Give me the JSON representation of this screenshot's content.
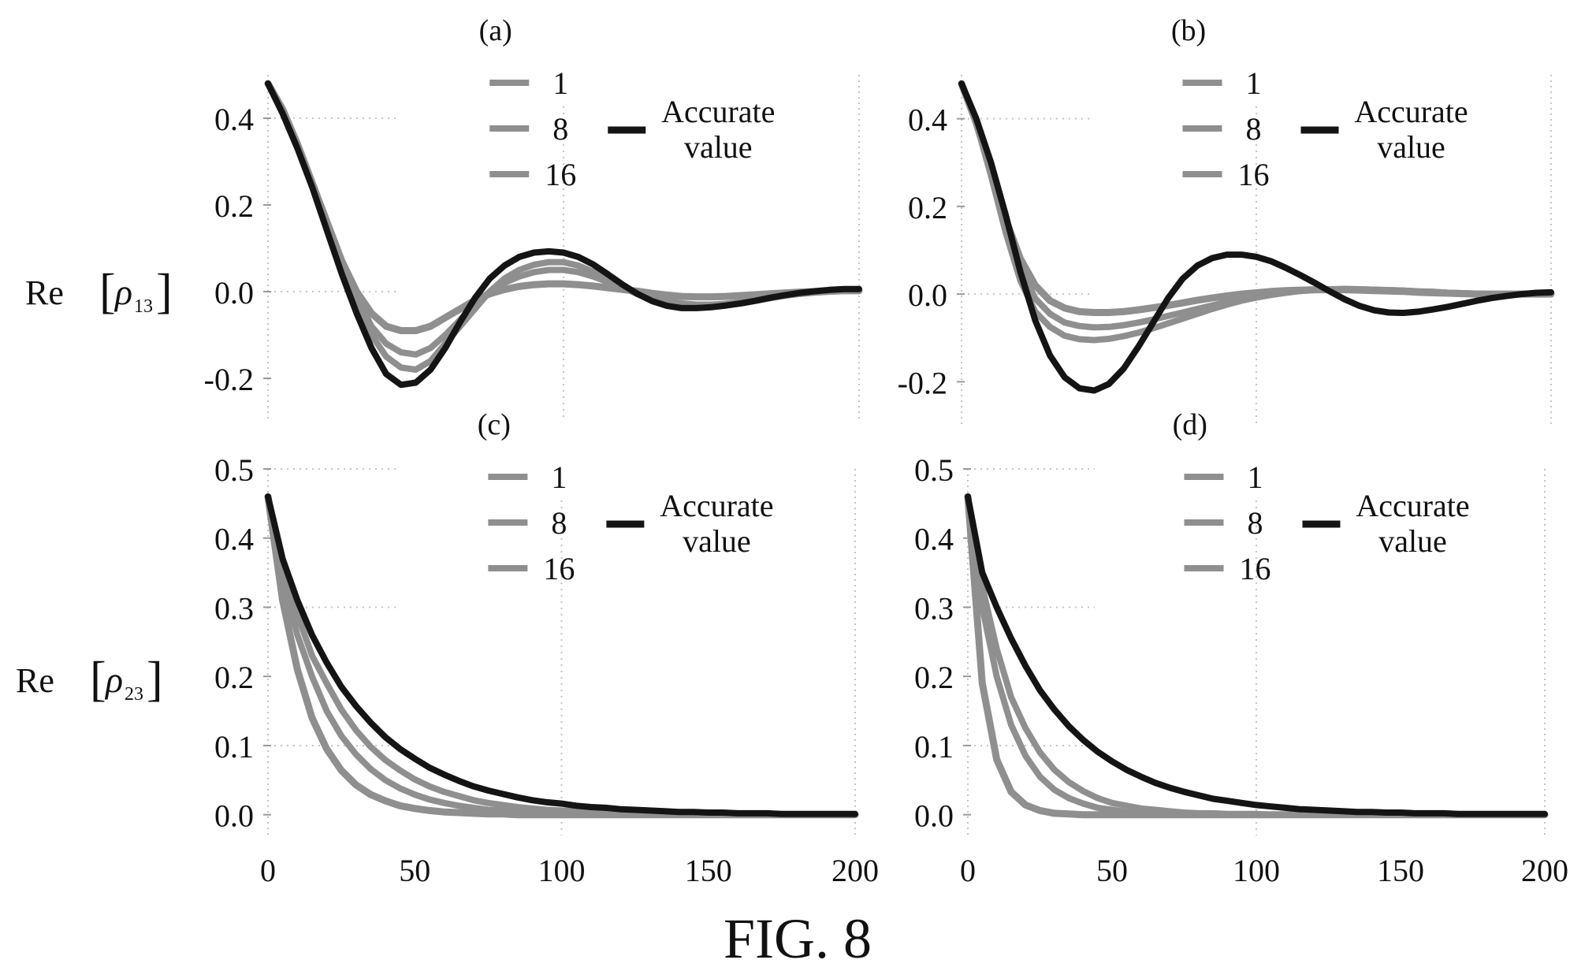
{
  "figure": {
    "caption": "FIG. 8",
    "ylabel_top_prefix": "Re",
    "ylabel_top_sub": "13",
    "ylabel_bottom_prefix": "Re",
    "ylabel_bottom_sub": "23",
    "ylabel_symbol": "ρ"
  },
  "colors": {
    "accurate": "#141414",
    "approx": "#8f8f8f",
    "grid": "#c4c4c4"
  },
  "chart_data": [
    {
      "type": "line",
      "panel_label": "(a)",
      "xlim": [
        0,
        200
      ],
      "ylim": [
        -0.3,
        0.5
      ],
      "yticks": [
        -0.2,
        0.0,
        0.2,
        0.4
      ],
      "yticklabels": [
        "-0.2",
        "0.0",
        "0.2",
        "0.4"
      ],
      "xticks": [
        0,
        50,
        100,
        150,
        200
      ],
      "xticklabels": [],
      "grid": "sparse-dotted",
      "legend_position": "top-right",
      "legend_accurate": [
        "Accurate",
        "value"
      ],
      "x": [
        0,
        5,
        10,
        15,
        20,
        25,
        30,
        35,
        40,
        45,
        50,
        55,
        60,
        65,
        70,
        75,
        80,
        85,
        90,
        95,
        100,
        105,
        110,
        115,
        120,
        125,
        130,
        135,
        140,
        145,
        150,
        155,
        160,
        165,
        170,
        175,
        180,
        185,
        190,
        195,
        200
      ],
      "series": [
        {
          "name": "1",
          "values": [
            0.48,
            0.42,
            0.34,
            0.25,
            0.16,
            0.07,
            0.0,
            -0.05,
            -0.08,
            -0.09,
            -0.09,
            -0.08,
            -0.06,
            -0.04,
            -0.02,
            -0.005,
            0.005,
            0.012,
            0.016,
            0.018,
            0.018,
            0.016,
            0.013,
            0.009,
            0.005,
            0.001,
            -0.004,
            -0.008,
            -0.011,
            -0.012,
            -0.012,
            -0.011,
            -0.009,
            -0.007,
            -0.005,
            -0.003,
            -0.001,
            0.0,
            0.001,
            0.002,
            0.002
          ]
        },
        {
          "name": "8",
          "values": [
            0.48,
            0.42,
            0.34,
            0.25,
            0.16,
            0.07,
            -0.01,
            -0.08,
            -0.12,
            -0.14,
            -0.145,
            -0.13,
            -0.1,
            -0.065,
            -0.03,
            0.0,
            0.02,
            0.035,
            0.045,
            0.05,
            0.05,
            0.045,
            0.035,
            0.022,
            0.009,
            -0.003,
            -0.014,
            -0.022,
            -0.027,
            -0.03,
            -0.03,
            -0.028,
            -0.024,
            -0.019,
            -0.014,
            -0.009,
            -0.005,
            -0.002,
            0.0,
            0.002,
            0.003
          ]
        },
        {
          "name": "16",
          "values": [
            0.48,
            0.42,
            0.34,
            0.25,
            0.16,
            0.06,
            -0.02,
            -0.1,
            -0.15,
            -0.175,
            -0.18,
            -0.16,
            -0.12,
            -0.08,
            -0.04,
            0.0,
            0.03,
            0.05,
            0.062,
            0.068,
            0.068,
            0.06,
            0.046,
            0.028,
            0.01,
            -0.006,
            -0.019,
            -0.028,
            -0.033,
            -0.036,
            -0.035,
            -0.032,
            -0.027,
            -0.021,
            -0.015,
            -0.009,
            -0.005,
            -0.002,
            0.0,
            0.003,
            0.004
          ]
        },
        {
          "name": "Accurate value",
          "accurate": true,
          "values": [
            0.48,
            0.41,
            0.33,
            0.24,
            0.14,
            0.04,
            -0.05,
            -0.13,
            -0.19,
            -0.215,
            -0.21,
            -0.18,
            -0.13,
            -0.07,
            -0.015,
            0.03,
            0.06,
            0.08,
            0.09,
            0.093,
            0.09,
            0.08,
            0.063,
            0.04,
            0.016,
            -0.005,
            -0.022,
            -0.033,
            -0.038,
            -0.038,
            -0.036,
            -0.032,
            -0.027,
            -0.021,
            -0.014,
            -0.008,
            -0.003,
            0.001,
            0.004,
            0.006,
            0.006
          ]
        }
      ]
    },
    {
      "type": "line",
      "panel_label": "(b)",
      "xlim": [
        0,
        200
      ],
      "ylim": [
        -0.3,
        0.5
      ],
      "yticks": [
        -0.2,
        0.0,
        0.2,
        0.4
      ],
      "yticklabels": [
        "-0.2",
        "0.0",
        "0.2",
        "0.4"
      ],
      "xticks": [
        0,
        50,
        100,
        150,
        200
      ],
      "xticklabels": [],
      "grid": "sparse-dotted",
      "legend_position": "top-right",
      "legend_accurate": [
        "Accurate",
        "value"
      ],
      "x": [
        0,
        5,
        10,
        15,
        20,
        25,
        30,
        35,
        40,
        45,
        50,
        55,
        60,
        65,
        70,
        75,
        80,
        85,
        90,
        95,
        100,
        105,
        110,
        115,
        120,
        125,
        130,
        135,
        140,
        145,
        150,
        155,
        160,
        165,
        170,
        175,
        180,
        185,
        190,
        195,
        200
      ],
      "series": [
        {
          "name": "1",
          "values": [
            0.48,
            0.39,
            0.28,
            0.17,
            0.08,
            0.02,
            -0.015,
            -0.032,
            -0.04,
            -0.042,
            -0.042,
            -0.04,
            -0.036,
            -0.031,
            -0.026,
            -0.02,
            -0.014,
            -0.009,
            -0.004,
            0.0,
            0.003,
            0.006,
            0.008,
            0.009,
            0.01,
            0.01,
            0.01,
            0.009,
            0.008,
            0.007,
            0.006,
            0.004,
            0.003,
            0.002,
            0.001,
            0.0,
            0.0,
            0.0,
            0.0,
            0.0,
            0.0
          ]
        },
        {
          "name": "8",
          "values": [
            0.48,
            0.39,
            0.28,
            0.16,
            0.06,
            -0.01,
            -0.045,
            -0.065,
            -0.073,
            -0.076,
            -0.075,
            -0.071,
            -0.065,
            -0.058,
            -0.05,
            -0.042,
            -0.034,
            -0.026,
            -0.018,
            -0.011,
            -0.005,
            0.0,
            0.004,
            0.007,
            0.009,
            0.01,
            0.011,
            0.011,
            0.01,
            0.009,
            0.008,
            0.006,
            0.005,
            0.003,
            0.002,
            0.001,
            0.0,
            0.0,
            0.0,
            0.0,
            0.0
          ]
        },
        {
          "name": "16",
          "values": [
            0.48,
            0.39,
            0.27,
            0.14,
            0.03,
            -0.04,
            -0.075,
            -0.095,
            -0.103,
            -0.105,
            -0.102,
            -0.096,
            -0.088,
            -0.078,
            -0.067,
            -0.056,
            -0.045,
            -0.034,
            -0.024,
            -0.015,
            -0.008,
            -0.002,
            0.003,
            0.007,
            0.01,
            0.011,
            0.012,
            0.011,
            0.01,
            0.009,
            0.008,
            0.006,
            0.005,
            0.003,
            0.002,
            0.001,
            0.0,
            0.0,
            0.0,
            0.0,
            0.0
          ]
        },
        {
          "name": "Accurate value",
          "accurate": true,
          "values": [
            0.48,
            0.4,
            0.3,
            0.18,
            0.05,
            -0.06,
            -0.14,
            -0.19,
            -0.215,
            -0.22,
            -0.205,
            -0.17,
            -0.12,
            -0.065,
            -0.01,
            0.035,
            0.065,
            0.082,
            0.09,
            0.09,
            0.085,
            0.075,
            0.06,
            0.043,
            0.025,
            0.006,
            -0.012,
            -0.027,
            -0.037,
            -0.042,
            -0.043,
            -0.04,
            -0.035,
            -0.029,
            -0.022,
            -0.015,
            -0.009,
            -0.004,
            0.0,
            0.003,
            0.004
          ]
        }
      ]
    },
    {
      "type": "line",
      "panel_label": "(c)",
      "xlim": [
        0,
        200
      ],
      "ylim": [
        -0.03,
        0.5
      ],
      "yticks": [
        0.0,
        0.1,
        0.2,
        0.3,
        0.4,
        0.5
      ],
      "yticklabels": [
        "0.0",
        "0.1",
        "0.2",
        "0.3",
        "0.4",
        "0.5"
      ],
      "xticks": [
        0,
        50,
        100,
        150,
        200
      ],
      "xticklabels": [
        "0",
        "50",
        "100",
        "150",
        "200"
      ],
      "grid": "sparse-dotted",
      "legend_position": "top-right",
      "legend_accurate": [
        "Accurate",
        "value"
      ],
      "x": [
        0,
        5,
        10,
        15,
        20,
        25,
        30,
        35,
        40,
        45,
        50,
        55,
        60,
        65,
        70,
        75,
        80,
        85,
        90,
        95,
        100,
        105,
        110,
        115,
        120,
        125,
        130,
        135,
        140,
        145,
        150,
        155,
        160,
        165,
        170,
        175,
        180,
        185,
        190,
        195,
        200
      ],
      "series": [
        {
          "name": "1",
          "values": [
            0.46,
            0.31,
            0.21,
            0.14,
            0.095,
            0.064,
            0.043,
            0.029,
            0.02,
            0.013,
            0.009,
            0.006,
            0.004,
            0.003,
            0.002,
            0.001,
            0.001,
            0.0,
            0.0,
            0.0,
            0.0,
            0.0,
            0.0,
            0.0,
            0.0,
            0.0,
            0.0,
            0.0,
            0.0,
            0.0,
            0.0,
            0.0,
            0.0,
            0.0,
            0.0,
            0.0,
            0.0,
            0.0,
            0.0,
            0.0,
            0.0
          ]
        },
        {
          "name": "8",
          "values": [
            0.46,
            0.34,
            0.26,
            0.2,
            0.15,
            0.114,
            0.087,
            0.066,
            0.05,
            0.038,
            0.029,
            0.022,
            0.017,
            0.013,
            0.01,
            0.007,
            0.006,
            0.004,
            0.003,
            0.002,
            0.002,
            0.001,
            0.001,
            0.001,
            0.0,
            0.0,
            0.0,
            0.0,
            0.0,
            0.0,
            0.0,
            0.0,
            0.0,
            0.0,
            0.0,
            0.0,
            0.0,
            0.0,
            0.0,
            0.0,
            0.0
          ]
        },
        {
          "name": "16",
          "values": [
            0.46,
            0.36,
            0.29,
            0.23,
            0.19,
            0.152,
            0.122,
            0.098,
            0.079,
            0.064,
            0.051,
            0.041,
            0.033,
            0.027,
            0.021,
            0.017,
            0.014,
            0.011,
            0.009,
            0.007,
            0.006,
            0.005,
            0.004,
            0.003,
            0.002,
            0.002,
            0.001,
            0.001,
            0.001,
            0.001,
            0.0,
            0.0,
            0.0,
            0.0,
            0.0,
            0.0,
            0.0,
            0.0,
            0.0,
            0.0,
            0.0
          ]
        },
        {
          "name": "Accurate value",
          "accurate": true,
          "values": [
            0.46,
            0.37,
            0.31,
            0.26,
            0.22,
            0.185,
            0.157,
            0.133,
            0.112,
            0.095,
            0.081,
            0.068,
            0.058,
            0.049,
            0.041,
            0.035,
            0.03,
            0.025,
            0.021,
            0.018,
            0.016,
            0.013,
            0.011,
            0.01,
            0.008,
            0.007,
            0.006,
            0.005,
            0.004,
            0.004,
            0.003,
            0.003,
            0.002,
            0.002,
            0.002,
            0.001,
            0.001,
            0.001,
            0.001,
            0.001,
            0.001
          ]
        }
      ]
    },
    {
      "type": "line",
      "panel_label": "(d)",
      "xlim": [
        0,
        200
      ],
      "ylim": [
        -0.03,
        0.5
      ],
      "yticks": [
        0.0,
        0.1,
        0.2,
        0.3,
        0.4,
        0.5
      ],
      "yticklabels": [
        "0.0",
        "0.1",
        "0.2",
        "0.3",
        "0.4",
        "0.5"
      ],
      "xticks": [
        0,
        50,
        100,
        150,
        200
      ],
      "xticklabels": [
        "0",
        "50",
        "100",
        "150",
        "200"
      ],
      "grid": "sparse-dotted",
      "legend_position": "top-right",
      "legend_accurate": [
        "Accurate",
        "value"
      ],
      "x": [
        0,
        5,
        10,
        15,
        20,
        25,
        30,
        35,
        40,
        45,
        50,
        55,
        60,
        65,
        70,
        75,
        80,
        85,
        90,
        95,
        100,
        105,
        110,
        115,
        120,
        125,
        130,
        135,
        140,
        145,
        150,
        155,
        160,
        165,
        170,
        175,
        180,
        185,
        190,
        195,
        200
      ],
      "series": [
        {
          "name": "1",
          "values": [
            0.46,
            0.19,
            0.08,
            0.033,
            0.014,
            0.006,
            0.002,
            0.001,
            0.0,
            0.0,
            0.0,
            0.0,
            0.0,
            0.0,
            0.0,
            0.0,
            0.0,
            0.0,
            0.0,
            0.0,
            0.0,
            0.0,
            0.0,
            0.0,
            0.0,
            0.0,
            0.0,
            0.0,
            0.0,
            0.0,
            0.0,
            0.0,
            0.0,
            0.0,
            0.0,
            0.0,
            0.0,
            0.0,
            0.0,
            0.0,
            0.0
          ]
        },
        {
          "name": "8",
          "values": [
            0.46,
            0.3,
            0.2,
            0.13,
            0.085,
            0.055,
            0.036,
            0.024,
            0.016,
            0.01,
            0.007,
            0.004,
            0.003,
            0.002,
            0.001,
            0.001,
            0.0,
            0.0,
            0.0,
            0.0,
            0.0,
            0.0,
            0.0,
            0.0,
            0.0,
            0.0,
            0.0,
            0.0,
            0.0,
            0.0,
            0.0,
            0.0,
            0.0,
            0.0,
            0.0,
            0.0,
            0.0,
            0.0,
            0.0,
            0.0,
            0.0
          ]
        },
        {
          "name": "16",
          "values": [
            0.46,
            0.33,
            0.24,
            0.17,
            0.125,
            0.09,
            0.065,
            0.047,
            0.034,
            0.024,
            0.017,
            0.013,
            0.009,
            0.007,
            0.005,
            0.003,
            0.002,
            0.002,
            0.001,
            0.001,
            0.001,
            0.0,
            0.0,
            0.0,
            0.0,
            0.0,
            0.0,
            0.0,
            0.0,
            0.0,
            0.0,
            0.0,
            0.0,
            0.0,
            0.0,
            0.0,
            0.0,
            0.0,
            0.0,
            0.0,
            0.0
          ]
        },
        {
          "name": "Accurate value",
          "accurate": true,
          "values": [
            0.46,
            0.35,
            0.3,
            0.255,
            0.215,
            0.18,
            0.152,
            0.128,
            0.108,
            0.091,
            0.077,
            0.065,
            0.055,
            0.046,
            0.039,
            0.033,
            0.028,
            0.023,
            0.02,
            0.017,
            0.014,
            0.012,
            0.01,
            0.008,
            0.007,
            0.006,
            0.005,
            0.004,
            0.004,
            0.003,
            0.003,
            0.002,
            0.002,
            0.002,
            0.001,
            0.001,
            0.001,
            0.001,
            0.001,
            0.001,
            0.001
          ]
        }
      ]
    }
  ]
}
